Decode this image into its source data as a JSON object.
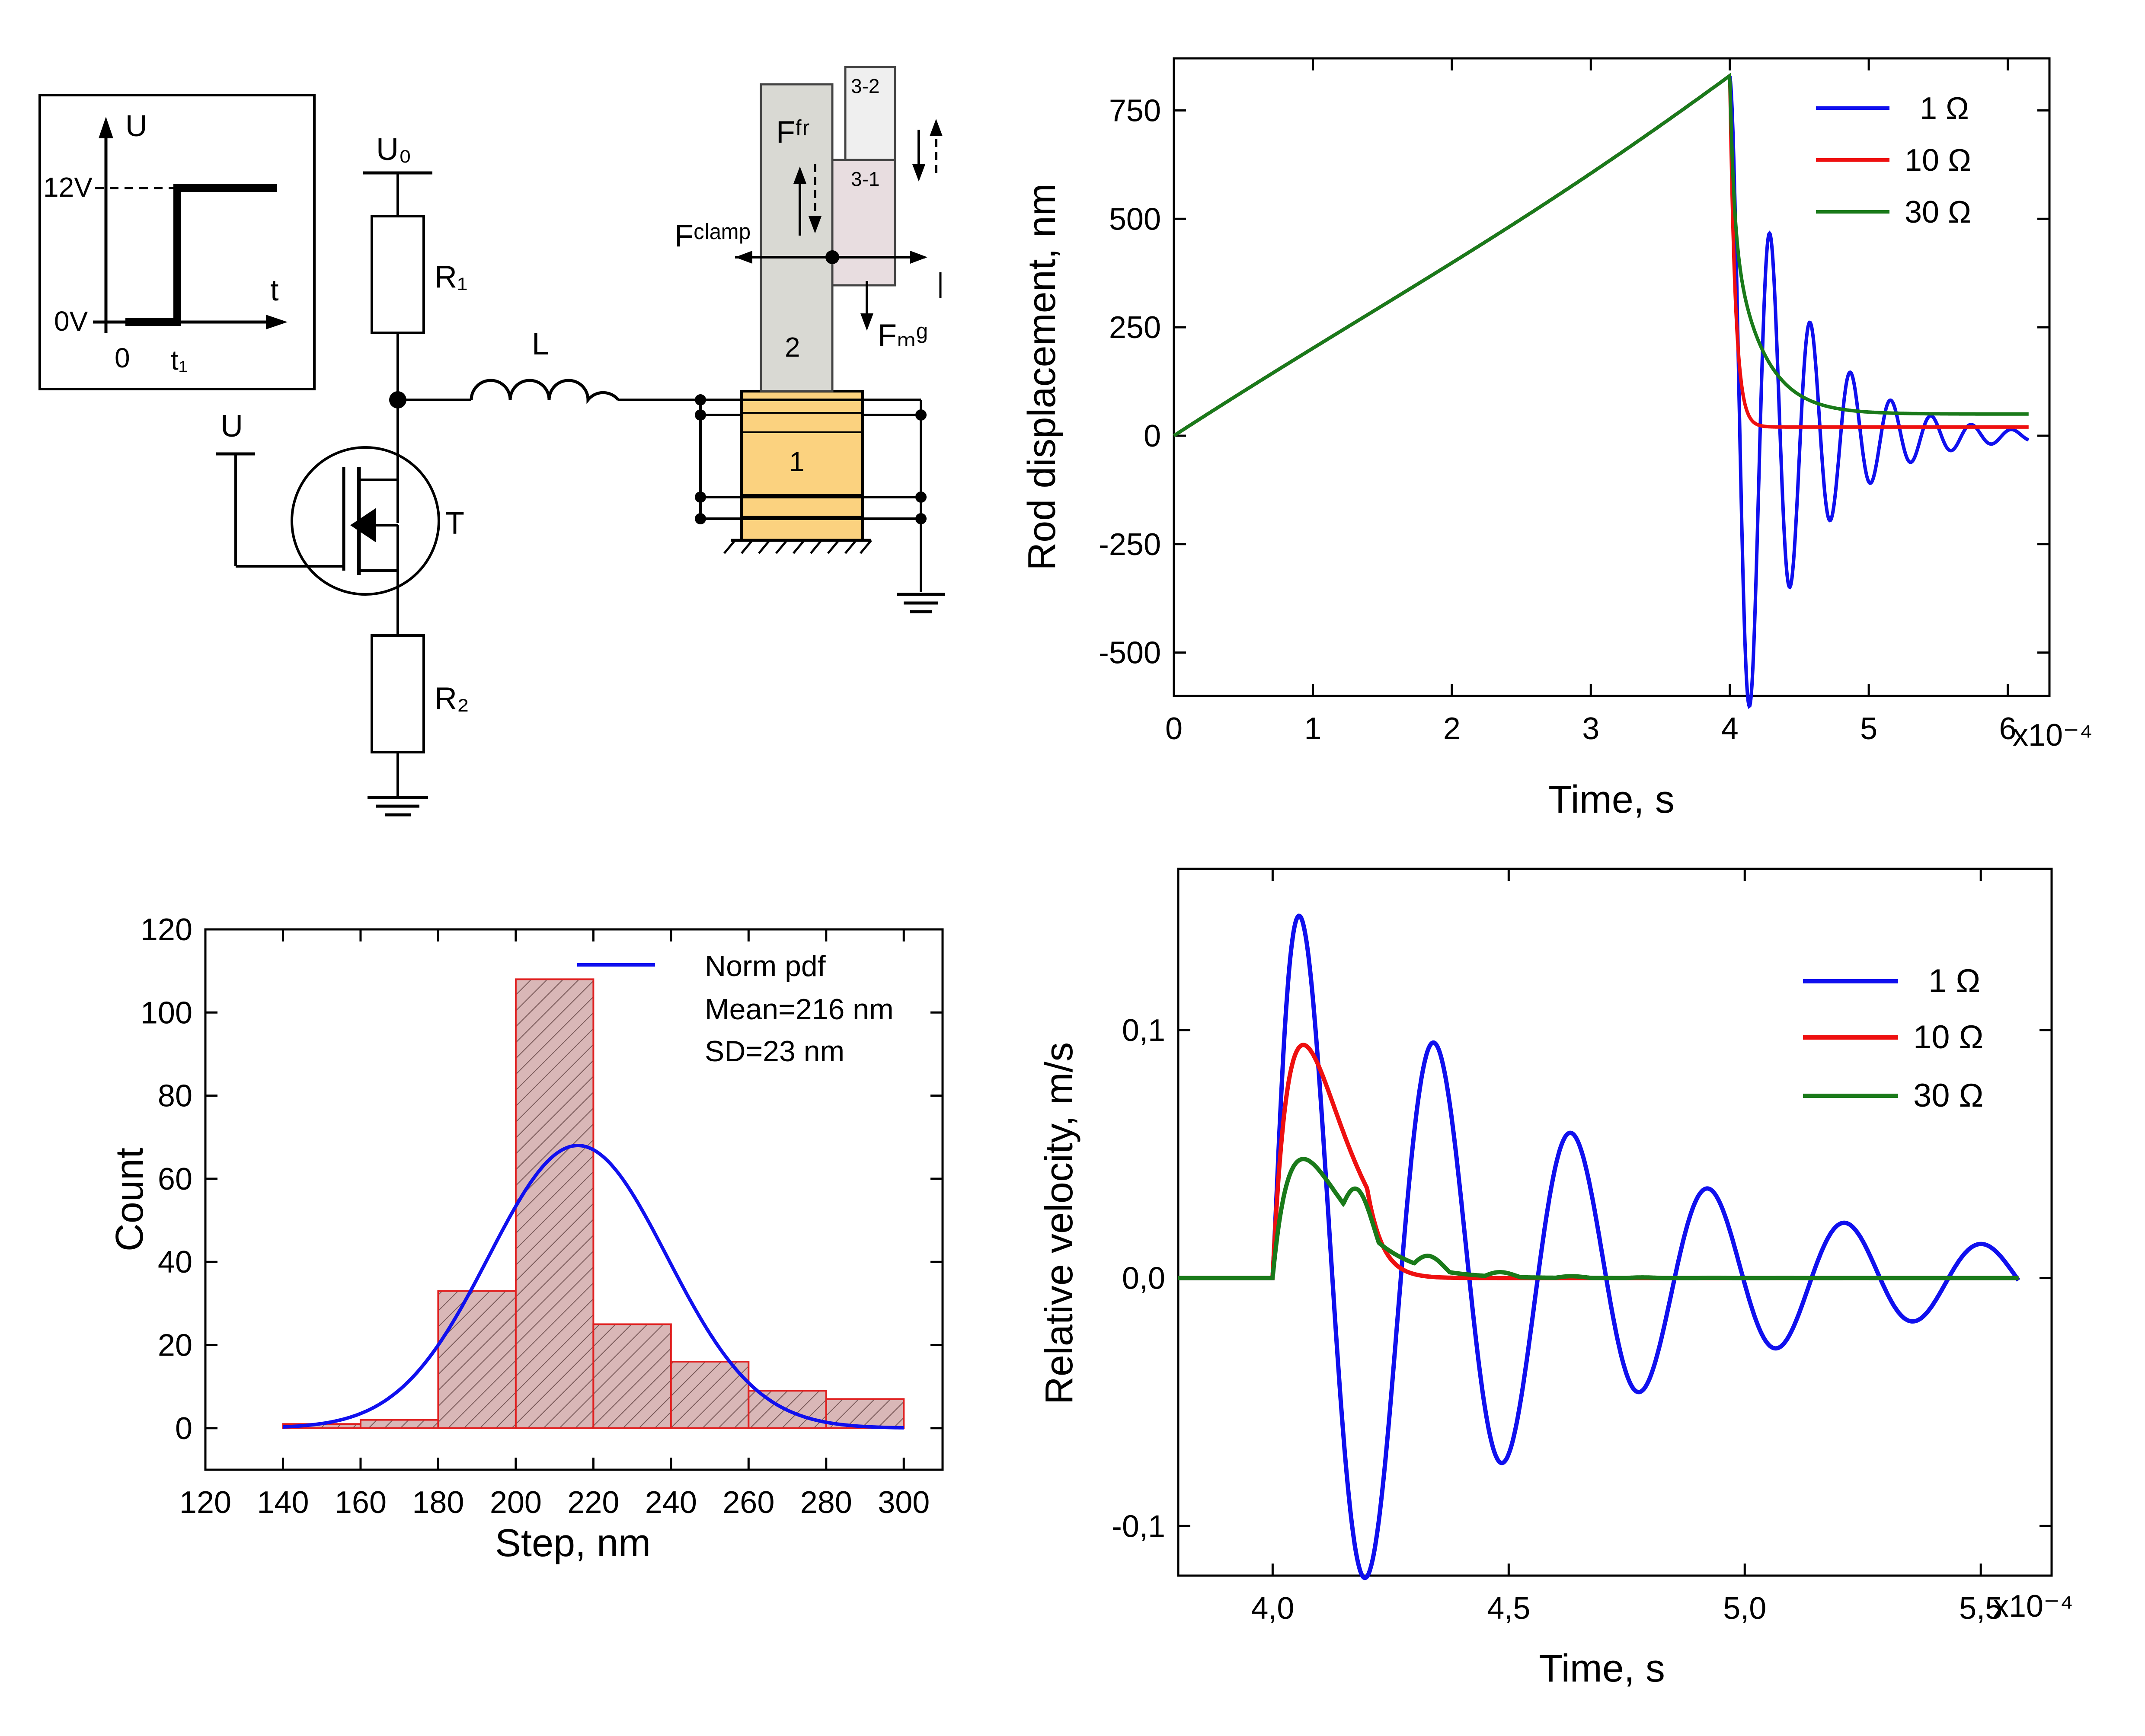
{
  "circuit": {
    "inset": {
      "u": "U",
      "t": "t",
      "v12": "12V",
      "v0": "0V",
      "zero": "0",
      "t1": "t₁"
    },
    "labels": {
      "u0": "U₀",
      "r1": "R₁",
      "r2": "R₂",
      "l": "L",
      "u": "U",
      "t": "T",
      "stack": "1",
      "block2": "2",
      "block31": "3-1",
      "block32": "3-2",
      "ffr": "Fᶠʳ",
      "fclamp": "Fᶜˡᵃᵐᵖ",
      "fmg": "Fₘᵍ"
    },
    "colors": {
      "stack": "#fbd27f",
      "block2": "#d9d9d3",
      "block31": "#e8dde0",
      "block32": "#efefef"
    }
  },
  "chart_data": [
    {
      "id": "displacement",
      "type": "line",
      "xlabel": "Time, s",
      "ylabel": "Rod displacement, nm",
      "x_multiplier_label": "x10⁻⁴",
      "xlim": [
        0,
        6.3
      ],
      "ylim": [
        -600,
        870
      ],
      "xticks": [
        0,
        1,
        2,
        3,
        4,
        5,
        6
      ],
      "xtick_labels": [
        "0",
        "1",
        "2",
        "3",
        "4",
        "5",
        "6"
      ],
      "yticks": [
        -500,
        -250,
        0,
        250,
        500,
        750
      ],
      "ytick_labels": [
        "-500",
        "-250",
        "0",
        "250",
        "500",
        "750"
      ],
      "legend_position": "top-right",
      "series": [
        {
          "name": "1 Ω",
          "color": "#1010ee",
          "model": "osc",
          "final": 0,
          "amp": 830,
          "tau": 0.5,
          "period": 0.29,
          "phase": 0.7
        },
        {
          "name": "10 Ω",
          "color": "#ee1010",
          "model": "decay",
          "final": 20,
          "amp": 810,
          "tau": 0.04
        },
        {
          "name": "30 Ω",
          "color": "#1a7a1a",
          "model": "decay2",
          "final": 50,
          "amp": 780,
          "tau": 0.22
        }
      ],
      "ramp": {
        "t_end": 4.0,
        "peak": 830
      },
      "x_end": 6.15
    },
    {
      "id": "histogram",
      "type": "bar",
      "xlabel": "Step, nm",
      "ylabel": "Count",
      "xlim": [
        120,
        310
      ],
      "ylim": [
        -10,
        120
      ],
      "xticks": [
        120,
        140,
        160,
        180,
        200,
        220,
        240,
        260,
        280,
        300
      ],
      "xtick_labels": [
        "120",
        "140",
        "160",
        "180",
        "200",
        "220",
        "240",
        "260",
        "280",
        "300"
      ],
      "yticks": [
        0,
        20,
        40,
        60,
        80,
        100,
        120
      ],
      "ytick_labels": [
        "0",
        "20",
        "40",
        "60",
        "80",
        "100",
        "120"
      ],
      "bin_edges": [
        140,
        160,
        180,
        200,
        220,
        240,
        260,
        280,
        300
      ],
      "values": [
        1,
        2,
        33,
        108,
        25,
        16,
        9,
        7
      ],
      "bar_fill": "#d9b7b7",
      "bar_edge": "#e02020",
      "fit": {
        "name": "Norm pdf",
        "mean": 216,
        "sd": 23,
        "peak": 68,
        "color": "#1010ee"
      },
      "annotations": [
        "Mean=216 nm",
        "SD=23 nm"
      ],
      "legend_position": "top-right"
    },
    {
      "id": "velocity",
      "type": "line",
      "xlabel": "Time, s",
      "ylabel": "Relative velocity, m/s",
      "x_multiplier_label": "x10⁻⁴",
      "xlim": [
        3.8,
        5.65
      ],
      "ylim": [
        -0.12,
        0.165
      ],
      "xticks": [
        4.0,
        4.5,
        5.0,
        5.5
      ],
      "xtick_labels": [
        "4,0",
        "4,5",
        "5,0",
        "5,5"
      ],
      "yticks": [
        -0.1,
        0.0,
        0.1
      ],
      "ytick_labels": [
        "-0,1",
        "0,0",
        "0,1"
      ],
      "legend_position": "top-right",
      "series": [
        {
          "name": "1 Ω",
          "color": "#1010ee",
          "amp": 0.16,
          "tau": 0.6,
          "period": 0.29,
          "t0": 4.0
        },
        {
          "name": "10 Ω",
          "color": "#ee1010",
          "amp": 0.094,
          "tau": 0.035,
          "period": 0.29,
          "t0": 4.0
        },
        {
          "name": "30 Ω",
          "color": "#1a7a1a",
          "amp": 0.048,
          "tau": 0.12,
          "period": 0.29,
          "t0": 4.0
        }
      ],
      "x_start": 3.8,
      "x_end": 5.58
    }
  ]
}
